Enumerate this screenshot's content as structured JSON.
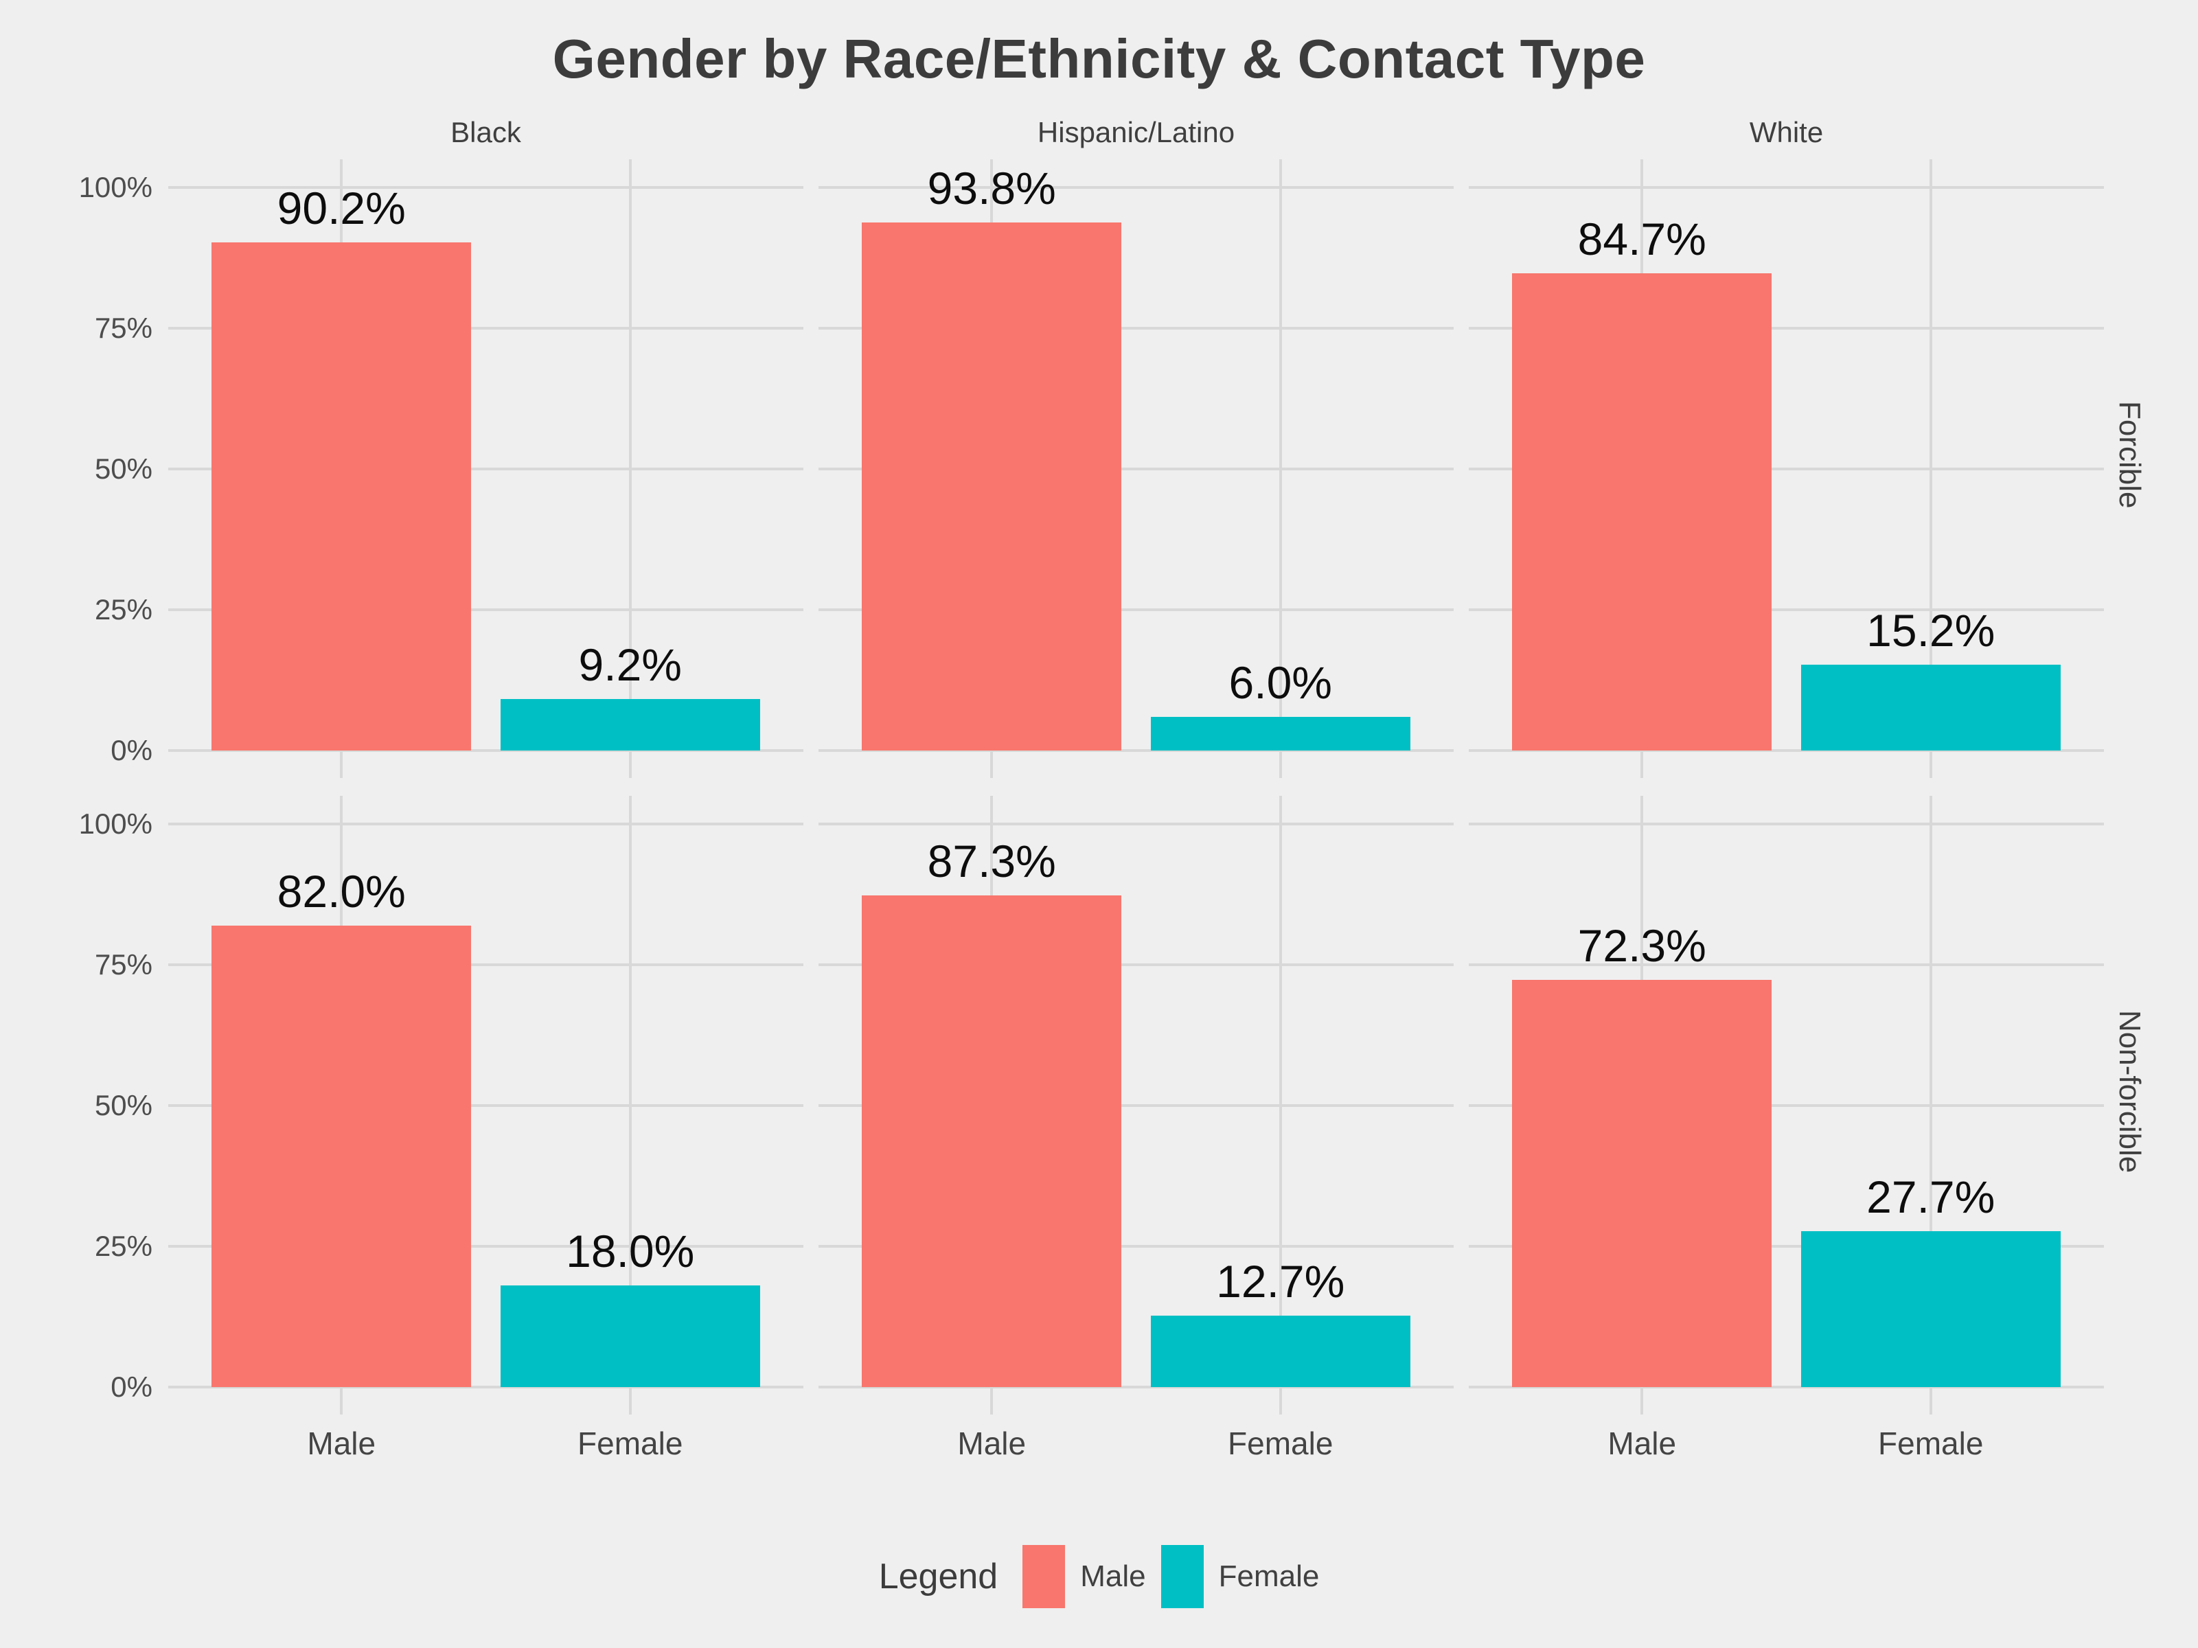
{
  "title": "Gender by Race/Ethnicity & Contact Type",
  "legend": {
    "title": "Legend",
    "items": [
      {
        "label": "Male",
        "color": "#F8766D"
      },
      {
        "label": "Female",
        "color": "#00BFC4"
      }
    ]
  },
  "colors": {
    "background": "#EFEFEF",
    "gridline": "#D8D8D8",
    "male": "#F8766D",
    "female": "#00BFC4",
    "title_text": "#3C3C3C",
    "tick_text": "#4D4D4D",
    "bar_label_text": "#0D0D0D"
  },
  "chart_data": {
    "type": "bar",
    "title": "Gender by Race/Ethnicity & Contact Type",
    "facet_columns": [
      "Black",
      "Hispanic/Latino",
      "White"
    ],
    "facet_rows": [
      "Forcible",
      "Non-forcible"
    ],
    "categories": [
      "Male",
      "Female"
    ],
    "xlabel": "",
    "ylabel": "",
    "ylim": [
      0,
      100
    ],
    "y_ticks": [
      "0%",
      "25%",
      "50%",
      "75%",
      "100%"
    ],
    "grid": true,
    "legend_position": "bottom",
    "series_colors": {
      "Male": "#F8766D",
      "Female": "#00BFC4"
    },
    "panels": [
      {
        "row": "Forcible",
        "col": "Black",
        "values": [
          90.2,
          9.2
        ],
        "labels": [
          "90.2%",
          "9.2%"
        ]
      },
      {
        "row": "Forcible",
        "col": "Hispanic/Latino",
        "values": [
          93.8,
          6.0
        ],
        "labels": [
          "93.8%",
          "6.0%"
        ]
      },
      {
        "row": "Forcible",
        "col": "White",
        "values": [
          84.7,
          15.2
        ],
        "labels": [
          "84.7%",
          "15.2%"
        ]
      },
      {
        "row": "Non-forcible",
        "col": "Black",
        "values": [
          82.0,
          18.0
        ],
        "labels": [
          "82.0%",
          "18.0%"
        ]
      },
      {
        "row": "Non-forcible",
        "col": "Hispanic/Latino",
        "values": [
          87.3,
          12.7
        ],
        "labels": [
          "87.3%",
          "12.7%"
        ]
      },
      {
        "row": "Non-forcible",
        "col": "White",
        "values": [
          72.3,
          27.7
        ],
        "labels": [
          "72.3%",
          "27.7%"
        ]
      }
    ]
  }
}
